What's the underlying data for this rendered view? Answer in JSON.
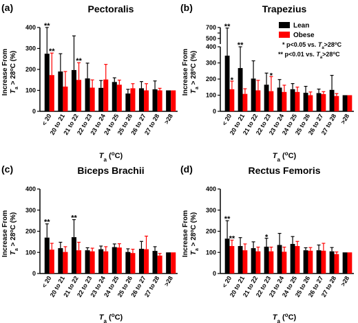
{
  "figure": {
    "legend": {
      "lean_label": "Lean",
      "obese_label": "Obese",
      "note_single_marker": "*",
      "note_single_text": " p<0.05 vs. ",
      "note_double_marker": "**",
      "note_double_text": " p<0.01 vs. ",
      "note_var": "T",
      "note_sub": "a",
      "note_tail": ">28",
      "note_deg": "o",
      "note_unit": "C"
    },
    "ylabel": {
      "line1": "Increase From",
      "line2_var": "T",
      "line2_sub": "a",
      "line2_rest": " > 28",
      "line2_deg": "o",
      "line2_unit": "C (%)"
    },
    "xlabel": {
      "var": "T",
      "sub": "a",
      "rest": " (",
      "deg": "o",
      "unit": "C)"
    },
    "colors": {
      "lean": "#000000",
      "obese": "#ff0000",
      "axis": "#000000"
    }
  },
  "chart_data": [
    {
      "panel": "(a)",
      "title": "Pectoralis",
      "type": "bar",
      "categories": [
        "< 20",
        "20 to 21",
        "21 to 22",
        "22 to 23",
        "23 to 24",
        "24 to 25",
        "25 to 26",
        "26 to 27",
        "27 to 28",
        ">28"
      ],
      "yticks": [
        "0",
        "100",
        "200",
        "300",
        "400"
      ],
      "ylim": [
        0,
        400
      ],
      "series": [
        {
          "name": "Lean",
          "values": [
            275,
            190,
            197,
            157,
            112,
            140,
            85,
            110,
            105,
            100
          ],
          "err": [
            125,
            85,
            163,
            73,
            35,
            20,
            20,
            32,
            40,
            0
          ]
        },
        {
          "name": "Obese",
          "values": [
            173,
            118,
            150,
            113,
            152,
            127,
            110,
            100,
            100,
            100
          ],
          "err": [
            105,
            72,
            82,
            37,
            72,
            22,
            22,
            32,
            10,
            0
          ]
        }
      ],
      "annotations": [
        {
          "series": 0,
          "index": 0,
          "text": "**"
        },
        {
          "series": 1,
          "index": 0,
          "text": "**"
        },
        {
          "series": 1,
          "index": 2,
          "text": "**"
        }
      ]
    },
    {
      "panel": "(b)",
      "title": "Trapezius",
      "type": "bar",
      "axis_break": {
        "lower_max": 400,
        "upper_min": 400,
        "upper_max": 700
      },
      "categories": [
        "< 20",
        "20 to 21",
        "21 to 22",
        "22 to 23",
        "23 to 24",
        "24 to 25",
        "25 to 26",
        "26 to 27",
        "27 to 28",
        ">28"
      ],
      "yticks": [
        "0",
        "100",
        "200",
        "300",
        "400",
        "500",
        "700"
      ],
      "ylim": [
        0,
        700
      ],
      "series": [
        {
          "name": "Lean",
          "values": [
            345,
            268,
            203,
            165,
            147,
            137,
            115,
            113,
            133,
            100
          ],
          "err": [
            345,
            132,
            110,
            72,
            50,
            35,
            40,
            25,
            90,
            0
          ]
        },
        {
          "name": "Obese",
          "values": [
            137,
            108,
            130,
            125,
            120,
            120,
            100,
            107,
            95,
            100
          ],
          "err": [
            50,
            32,
            62,
            90,
            42,
            30,
            20,
            15,
            15,
            0
          ]
        }
      ],
      "annotations": [
        {
          "series": 0,
          "index": 0,
          "text": "**"
        },
        {
          "series": 1,
          "index": 0,
          "text": "*"
        },
        {
          "series": 0,
          "index": 1,
          "text": "**"
        },
        {
          "series": 1,
          "index": 3,
          "text": "*"
        }
      ]
    },
    {
      "panel": "(c)",
      "title": "Biceps Brachii",
      "type": "bar",
      "categories": [
        "< 20",
        "20 to 21",
        "21 to 22",
        "22 to 23",
        "23 to 24",
        "24 to 25",
        "25 to 26",
        "26 to 27",
        "27 to 28",
        ">28"
      ],
      "yticks": [
        "0",
        "100",
        "200",
        "300",
        "400"
      ],
      "ylim": [
        0,
        400
      ],
      "series": [
        {
          "name": "Lean",
          "values": [
            170,
            120,
            172,
            110,
            115,
            125,
            102,
            117,
            107,
            100
          ],
          "err": [
            65,
            28,
            83,
            12,
            15,
            15,
            15,
            35,
            20,
            0
          ]
        },
        {
          "name": "Obese",
          "values": [
            113,
            102,
            110,
            105,
            105,
            123,
            97,
            115,
            85,
            100
          ],
          "err": [
            30,
            25,
            38,
            15,
            22,
            18,
            18,
            62,
            10,
            0
          ]
        }
      ],
      "annotations": [
        {
          "series": 0,
          "index": 0,
          "text": "**"
        },
        {
          "series": 0,
          "index": 2,
          "text": "**"
        }
      ]
    },
    {
      "panel": "(d)",
      "title": "Rectus Femoris",
      "type": "bar",
      "categories": [
        "< 20",
        "20 to 21",
        "21 to 22",
        "22 to 23",
        "23 to 24",
        "24 to 25",
        "25 to 26",
        "26 to 27",
        "27 to 28",
        ">28"
      ],
      "yticks": [
        "0",
        "100",
        "200",
        "300",
        "400"
      ],
      "ylim": [
        0,
        400
      ],
      "series": [
        {
          "name": "Lean",
          "values": [
            165,
            130,
            120,
            127,
            135,
            140,
            110,
            110,
            105,
            100
          ],
          "err": [
            85,
            40,
            30,
            40,
            55,
            35,
            12,
            25,
            18,
            0
          ]
        },
        {
          "name": "Obese",
          "values": [
            130,
            110,
            105,
            105,
            103,
            130,
            108,
            108,
            92,
            100
          ],
          "err": [
            28,
            30,
            20,
            20,
            22,
            22,
            15,
            35,
            10,
            0
          ]
        }
      ],
      "annotations": [
        {
          "series": 0,
          "index": 0,
          "text": "**"
        },
        {
          "series": 1,
          "index": 0,
          "text": "**"
        },
        {
          "series": 0,
          "index": 3,
          "text": "*"
        }
      ]
    }
  ]
}
